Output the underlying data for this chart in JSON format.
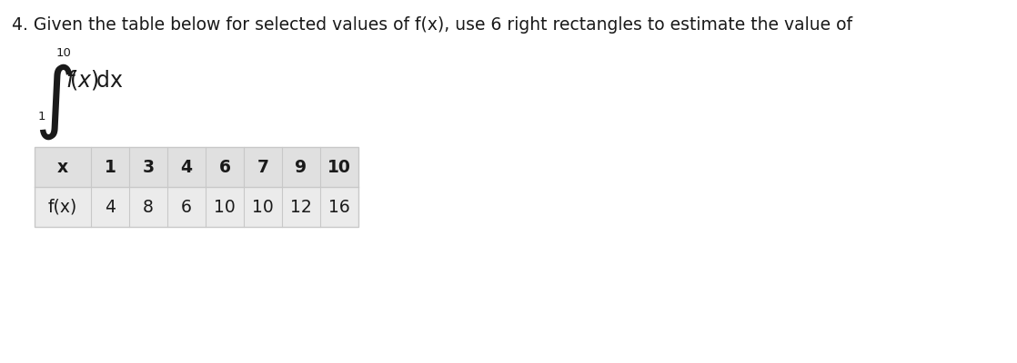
{
  "title_text": "4. Given the table below for selected values of f(x), use 6 right rectangles to estimate the value of",
  "title_fontsize": 13.5,
  "integral_upper": "10",
  "integral_lower": "1",
  "integral_expr": "f(x)dx",
  "table_x_labels": [
    "x",
    "1",
    "3",
    "4",
    "6",
    "7",
    "9",
    "10"
  ],
  "table_fx_labels": [
    "f(x)",
    "4",
    "8",
    "6",
    "10",
    "10",
    "12",
    "16"
  ],
  "table_header_bg": "#e0e0e0",
  "table_row_bg": "#ebebeb",
  "table_divider_color": "#c8c8c8",
  "table_border_color": "#c8c8c8",
  "background_color": "#ffffff",
  "text_color": "#1a1a1a"
}
